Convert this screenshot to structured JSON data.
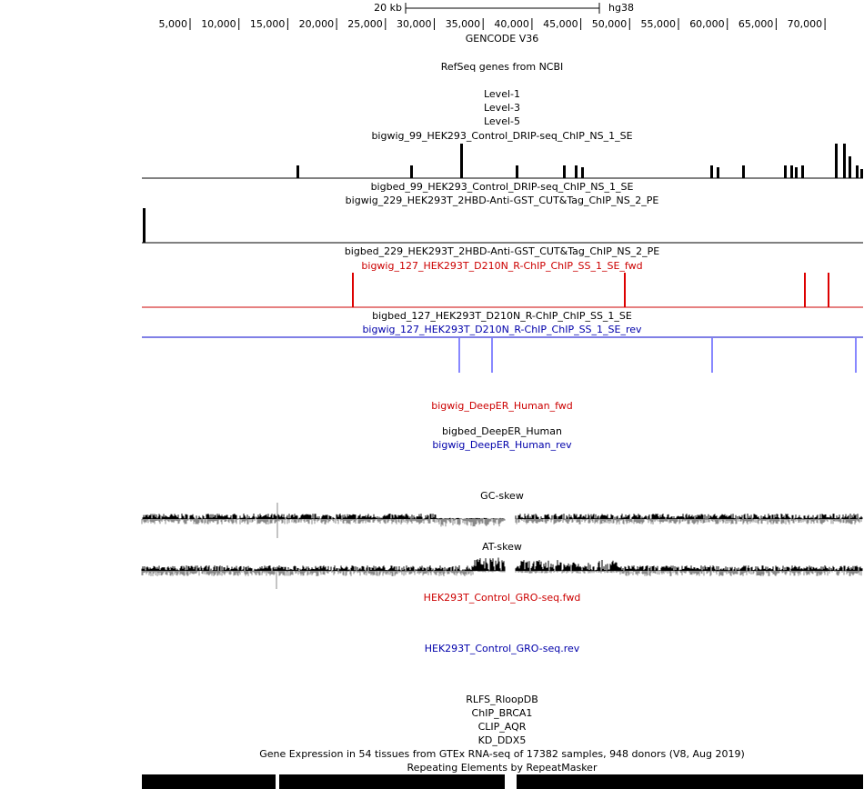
{
  "scale": {
    "size_label": "20 kb",
    "assembly": "hg38"
  },
  "ruler_ticks": [
    "5,000",
    "10,000",
    "15,000",
    "20,000",
    "25,000",
    "30,000",
    "35,000",
    "40,000",
    "45,000",
    "50,000",
    "55,000",
    "60,000",
    "65,000",
    "70,000"
  ],
  "tracks": [
    {
      "label": "GENCODE V36",
      "color": "#000000"
    },
    {
      "label": "RefSeq genes from NCBI",
      "color": "#000000"
    },
    {
      "label": "Level-1",
      "color": "#000000"
    },
    {
      "label": "Level-3",
      "color": "#000000"
    },
    {
      "label": "Level-5",
      "color": "#000000"
    },
    {
      "label": "bigwig_99_HEK293_Control_DRIP-seq_ChIP_NS_1_SE",
      "color": "#000000"
    },
    {
      "label": "bigbed_99_HEK293_Control_DRIP-seq_ChIP_NS_1_SE",
      "color": "#000000"
    },
    {
      "label": "bigwig_229_HEK293T_2HBD-Anti-GST_CUT&Tag_ChIP_NS_2_PE",
      "color": "#000000"
    },
    {
      "label": "bigbed_229_HEK293T_2HBD-Anti-GST_CUT&Tag_ChIP_NS_2_PE",
      "color": "#000000"
    },
    {
      "label": "bigwig_127_HEK293T_D210N_R-ChIP_ChIP_SS_1_SE_fwd",
      "color": "#cc0000"
    },
    {
      "label": "bigbed_127_HEK293T_D210N_R-ChIP_ChIP_SS_1_SE",
      "color": "#000000"
    },
    {
      "label": "bigwig_127_HEK293T_D210N_R-ChIP_ChIP_SS_1_SE_rev",
      "color": "#0000aa"
    },
    {
      "label": "bigwig_DeepER_Human_fwd",
      "color": "#cc0000"
    },
    {
      "label": "bigbed_DeepER_Human",
      "color": "#000000"
    },
    {
      "label": "bigwig_DeepER_Human_rev",
      "color": "#0000aa"
    },
    {
      "label": "GC-skew",
      "color": "#000000"
    },
    {
      "label": "AT-skew",
      "color": "#000000"
    },
    {
      "label": "HEK293T_Control_GRO-seq.fwd",
      "color": "#cc0000"
    },
    {
      "label": "HEK293T_Control_GRO-seq.rev",
      "color": "#0000aa"
    },
    {
      "label": "RLFS_RloopDB",
      "color": "#000000"
    },
    {
      "label": "ChIP_BRCA1",
      "color": "#000000"
    },
    {
      "label": "CLIP_AQR",
      "color": "#000000"
    },
    {
      "label": "KD_DDX5",
      "color": "#000000"
    },
    {
      "label": "Gene Expression in 54 tissues from GTEx RNA-seq of 17382 samples, 948 donors (V8, Aug 2019)",
      "color": "#000000"
    },
    {
      "label": "Repeating Elements by RepeatMasker",
      "color": "#000000"
    }
  ]
}
